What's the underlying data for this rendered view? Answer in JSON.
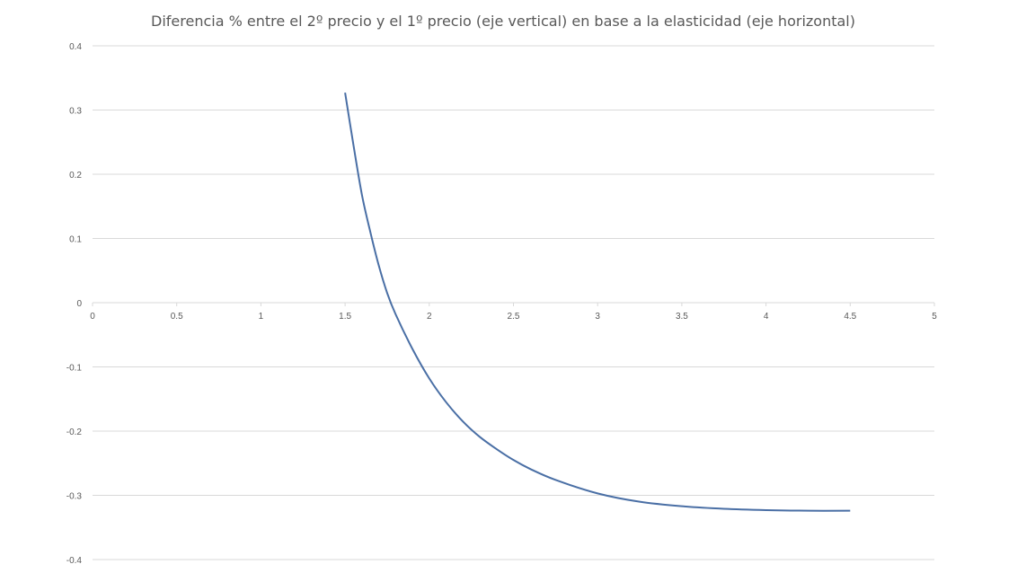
{
  "chart_data": {
    "type": "line",
    "title": "Diferencia % entre el 2º precio y el 1º precio (eje vertical) en base a la elasticidad (eje horizontal)",
    "xlabel": "",
    "ylabel": "",
    "xlim": [
      0,
      5
    ],
    "ylim": [
      -0.4,
      0.4
    ],
    "x_ticks": [
      "0",
      "0.5",
      "1",
      "1.5",
      "2",
      "2.5",
      "3",
      "3.5",
      "4",
      "4.5",
      "5"
    ],
    "y_ticks": [
      "0.4",
      "0.3",
      "0.2",
      "0.1",
      "0",
      "-0.1",
      "-0.2",
      "-0.3",
      "-0.4"
    ],
    "grid": "horizontal",
    "legend": "none",
    "series": [
      {
        "color": "#4a6fa5",
        "x": [
          1.5,
          1.55,
          1.6,
          1.65,
          1.7,
          1.75,
          1.8,
          1.9,
          2.0,
          2.1,
          2.2,
          2.3,
          2.4,
          2.5,
          2.6,
          2.75,
          3.0,
          3.25,
          3.5,
          3.75,
          4.0,
          4.25,
          4.5
        ],
        "y": [
          0.327,
          0.245,
          0.168,
          0.11,
          0.058,
          0.015,
          -0.018,
          -0.072,
          -0.118,
          -0.155,
          -0.185,
          -0.209,
          -0.228,
          -0.245,
          -0.259,
          -0.276,
          -0.297,
          -0.31,
          -0.317,
          -0.321,
          -0.323,
          -0.324,
          -0.324
        ]
      }
    ]
  }
}
